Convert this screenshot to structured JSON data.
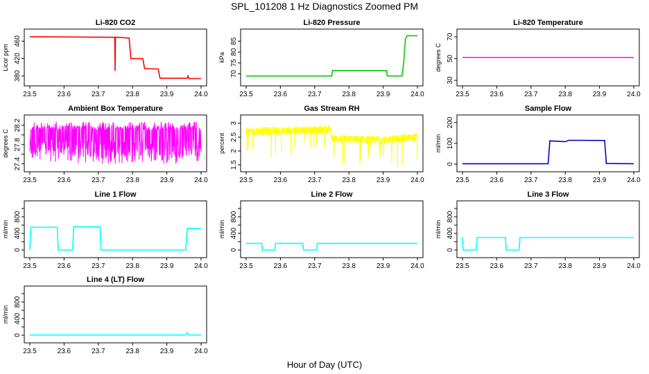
{
  "figure": {
    "title": "SPL_101208  1 Hz Diagnostics Zoomed PM",
    "xlabel": "Hour of Day (UTC)"
  },
  "chart_data": [
    {
      "type": "line",
      "title": "Li-820 CO2",
      "ylabel": "Licor ppm",
      "color": "#ff0000",
      "xlim": [
        23.5,
        24.0
      ],
      "ylim": [
        370,
        475
      ],
      "xticks": [
        "23.5",
        "23.6",
        "23.7",
        "23.8",
        "23.9",
        "24.0"
      ],
      "yticks": [
        380,
        420,
        460
      ],
      "x": [
        23.5,
        23.745,
        23.748,
        23.749,
        23.75,
        23.755,
        23.79,
        23.795,
        23.8,
        23.83,
        23.835,
        23.875,
        23.88,
        23.96,
        23.962,
        23.965,
        23.97,
        24.0
      ],
      "y": [
        470,
        469,
        469,
        392,
        469,
        469,
        467,
        420,
        420,
        420,
        397,
        396,
        375,
        375,
        380,
        374,
        374,
        374
      ]
    },
    {
      "type": "line",
      "title": "Li-820 Pressure",
      "ylabel": "kPa",
      "color": "#00cc00",
      "xlim": [
        23.5,
        24.0
      ],
      "ylim": [
        67,
        88
      ],
      "xticks": [
        "23.5",
        "23.6",
        "23.7",
        "23.8",
        "23.9",
        "24.0"
      ],
      "yticks": [
        70,
        75,
        80,
        85
      ],
      "x": [
        23.5,
        23.75,
        23.752,
        23.91,
        23.912,
        23.955,
        23.96,
        23.965,
        23.97,
        24.0
      ],
      "y": [
        69,
        69,
        71.5,
        71.5,
        69,
        69,
        75,
        86,
        87.5,
        87.5
      ]
    },
    {
      "type": "line",
      "title": "Li-820 Temperature",
      "ylabel": "degrees C",
      "color": "#ff00ff",
      "xlim": [
        23.5,
        24.0
      ],
      "ylim": [
        30,
        72
      ],
      "xticks": [
        "23.5",
        "23.6",
        "23.7",
        "23.8",
        "23.9",
        "24.0"
      ],
      "yticks": [
        30,
        50,
        70
      ],
      "x": [
        23.5,
        24.0
      ],
      "y": [
        51,
        51
      ]
    },
    {
      "type": "line",
      "title": "Ambient Box Temperature",
      "ylabel": "degrees C",
      "color": "#ff00ff",
      "xlim": [
        23.5,
        24.0
      ],
      "ylim": [
        27.35,
        28.3
      ],
      "xticks": [
        "23.5",
        "23.6",
        "23.7",
        "23.8",
        "23.9",
        "24.0"
      ],
      "yticks": [
        27.4,
        27.6,
        27.8,
        28.0,
        28.2
      ],
      "ytick_labels": [
        "27.4",
        "",
        "27.8",
        "",
        "28.2"
      ],
      "x": [
        23.5,
        23.52,
        23.54,
        23.56,
        23.58,
        23.6,
        23.62,
        23.64,
        23.66,
        23.68,
        23.7,
        23.72,
        23.74,
        23.76,
        23.78,
        23.8,
        23.82,
        23.84,
        23.86,
        23.88,
        23.9,
        23.92,
        23.94,
        23.96,
        23.98,
        24.0
      ],
      "y": [
        27.95,
        28.05,
        27.85,
        28.1,
        27.9,
        28.0,
        27.95,
        28.05,
        27.9,
        28.0,
        27.95,
        28.05,
        27.9,
        28.0,
        27.95,
        28.05,
        27.9,
        28.0,
        27.95,
        28.05,
        27.9,
        28.0,
        27.95,
        28.05,
        27.95,
        28.0
      ],
      "band": {
        "low": 27.55,
        "high": 28.2,
        "min": 27.4,
        "max": 28.28
      }
    },
    {
      "type": "line",
      "title": "Gas Stream RH",
      "ylabel": "percent",
      "color": "#ffff00",
      "xlim": [
        23.5,
        24.0
      ],
      "ylim": [
        1.45,
        3.1
      ],
      "xticks": [
        "23.5",
        "23.6",
        "23.7",
        "23.8",
        "23.9",
        "24.0"
      ],
      "yticks": [
        1.5,
        2.0,
        2.5,
        3.0
      ],
      "x": [
        23.5,
        23.55,
        23.6,
        23.65,
        23.7,
        23.745,
        23.75,
        23.755,
        23.8,
        23.85,
        23.9,
        23.95,
        24.0
      ],
      "y": [
        2.7,
        2.72,
        2.72,
        2.75,
        2.75,
        2.8,
        2.5,
        2.45,
        2.42,
        2.4,
        2.4,
        2.45,
        2.5
      ],
      "band_width": 0.3
    },
    {
      "type": "line",
      "title": "Sample Flow",
      "ylabel": "ml/min",
      "color": "#0000cc",
      "xlim": [
        23.5,
        24.0
      ],
      "ylim": [
        -10,
        210
      ],
      "xticks": [
        "23.5",
        "23.6",
        "23.7",
        "23.8",
        "23.9",
        "24.0"
      ],
      "yticks": [
        0,
        100,
        200
      ],
      "x": [
        23.5,
        23.75,
        23.755,
        23.8,
        23.81,
        23.915,
        23.92,
        24.0
      ],
      "y": [
        2,
        2,
        112,
        108,
        115,
        114,
        3,
        2
      ]
    },
    {
      "type": "line",
      "title": "Line 1 Flow",
      "ylabel": "ml/min",
      "color": "#00ffff",
      "xlim": [
        23.5,
        24.0
      ],
      "ylim": [
        -50,
        1050
      ],
      "xticks": [
        "23.5",
        "23.6",
        "23.7",
        "23.8",
        "23.9",
        "24.0"
      ],
      "yticks": [
        0,
        200,
        400,
        600,
        800,
        1000
      ],
      "ytick_labels": [
        "0",
        "",
        "400",
        "",
        "800",
        ""
      ],
      "x": [
        23.5,
        23.503,
        23.58,
        23.583,
        23.625,
        23.628,
        23.705,
        23.708,
        23.955,
        23.96,
        24.0
      ],
      "y": [
        0,
        550,
        550,
        0,
        0,
        560,
        560,
        0,
        0,
        520,
        520
      ]
    },
    {
      "type": "line",
      "title": "Line 2 Flow",
      "ylabel": "ml/min",
      "color": "#00ffff",
      "xlim": [
        23.5,
        24.0
      ],
      "ylim": [
        -50,
        1050
      ],
      "xticks": [
        "23.5",
        "23.6",
        "23.7",
        "23.8",
        "23.9",
        "24.0"
      ],
      "yticks": [
        0,
        200,
        400,
        600,
        800,
        1000
      ],
      "ytick_labels": [
        "0",
        "",
        "400",
        "",
        "800",
        ""
      ],
      "x": [
        23.5,
        23.545,
        23.548,
        23.583,
        23.586,
        23.665,
        23.668,
        23.705,
        23.708,
        24.0
      ],
      "y": [
        160,
        160,
        0,
        0,
        160,
        160,
        0,
        0,
        160,
        160
      ]
    },
    {
      "type": "line",
      "title": "Line 3 Flow",
      "ylabel": "ml/min",
      "color": "#00ffff",
      "xlim": [
        23.5,
        24.0
      ],
      "ylim": [
        -50,
        1050
      ],
      "xticks": [
        "23.5",
        "23.6",
        "23.7",
        "23.8",
        "23.9",
        "24.0"
      ],
      "yticks": [
        0,
        200,
        400,
        600,
        800,
        1000
      ],
      "ytick_labels": [
        "0",
        "",
        "400",
        "",
        "800",
        ""
      ],
      "x": [
        23.5,
        23.502,
        23.504,
        23.54,
        23.543,
        23.625,
        23.628,
        23.665,
        23.668,
        24.0
      ],
      "y": [
        300,
        0,
        0,
        0,
        300,
        300,
        0,
        0,
        300,
        300
      ]
    },
    {
      "type": "line",
      "title": "Line 4 (LT) Flow",
      "ylabel": "ml/min",
      "color": "#00ffff",
      "xlim": [
        23.5,
        24.0
      ],
      "ylim": [
        -50,
        1050
      ],
      "xticks": [
        "23.5",
        "23.6",
        "23.7",
        "23.8",
        "23.9",
        "24.0"
      ],
      "yticks": [
        0,
        200,
        400,
        600,
        800,
        1000
      ],
      "ytick_labels": [
        "0",
        "",
        "400",
        "",
        "800",
        ""
      ],
      "x": [
        23.5,
        23.955,
        23.96,
        23.965,
        24.0
      ],
      "y": [
        5,
        5,
        60,
        5,
        5
      ]
    }
  ]
}
